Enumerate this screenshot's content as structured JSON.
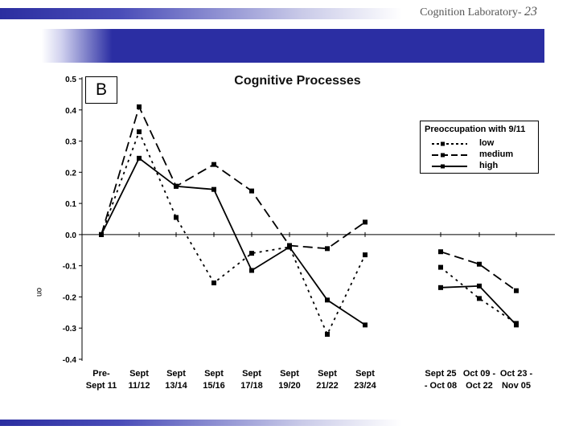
{
  "slide": {
    "header_text": "Cognition Laboratory-",
    "page_number": "23",
    "panel_label": "B"
  },
  "colors": {
    "accent": "#2b2ea3",
    "ink": "#000000"
  },
  "chart_data": {
    "type": "line",
    "title": "Cognitive Processes",
    "xlabel": "",
    "ylabel": "",
    "ylabel_fragment": "on",
    "ylim": [
      -0.4,
      0.5
    ],
    "yticks": [
      "0.5",
      "0.4",
      "0.3",
      "0.2",
      "0.1",
      "0.0",
      "-0.1",
      "-0.2",
      "-0.3",
      "-0.4"
    ],
    "categories": [
      [
        "Pre-",
        "Sept 11"
      ],
      [
        "Sept",
        "11/12"
      ],
      [
        "Sept",
        "13/14"
      ],
      [
        "Sept",
        "15/16"
      ],
      [
        "Sept",
        "17/18"
      ],
      [
        "Sept",
        "19/20"
      ],
      [
        "Sept",
        "21/22"
      ],
      [
        "Sept",
        "23/24"
      ],
      [
        "Sept 25",
        "- Oct 08"
      ],
      [
        "Oct 09 -",
        "Oct 22"
      ],
      [
        "Oct 23 -",
        "Nov 05"
      ]
    ],
    "gap_after_index": 7,
    "legend": {
      "title": "Preoccupation with 9/11",
      "position": "top-right"
    },
    "series": [
      {
        "name": "low",
        "dash": "dotted",
        "values": [
          0.0,
          0.33,
          0.055,
          -0.155,
          -0.06,
          -0.04,
          -0.32,
          -0.065,
          -0.105,
          -0.205,
          -0.285
        ]
      },
      {
        "name": "medium",
        "dash": "dashed",
        "values": [
          0.0,
          0.41,
          0.155,
          0.225,
          0.14,
          -0.035,
          -0.045,
          0.04,
          -0.055,
          -0.095,
          -0.18
        ]
      },
      {
        "name": "high",
        "dash": "solid",
        "values": [
          0.0,
          0.245,
          0.155,
          0.145,
          -0.115,
          -0.04,
          -0.21,
          -0.29,
          -0.17,
          -0.165,
          -0.29
        ]
      }
    ]
  }
}
